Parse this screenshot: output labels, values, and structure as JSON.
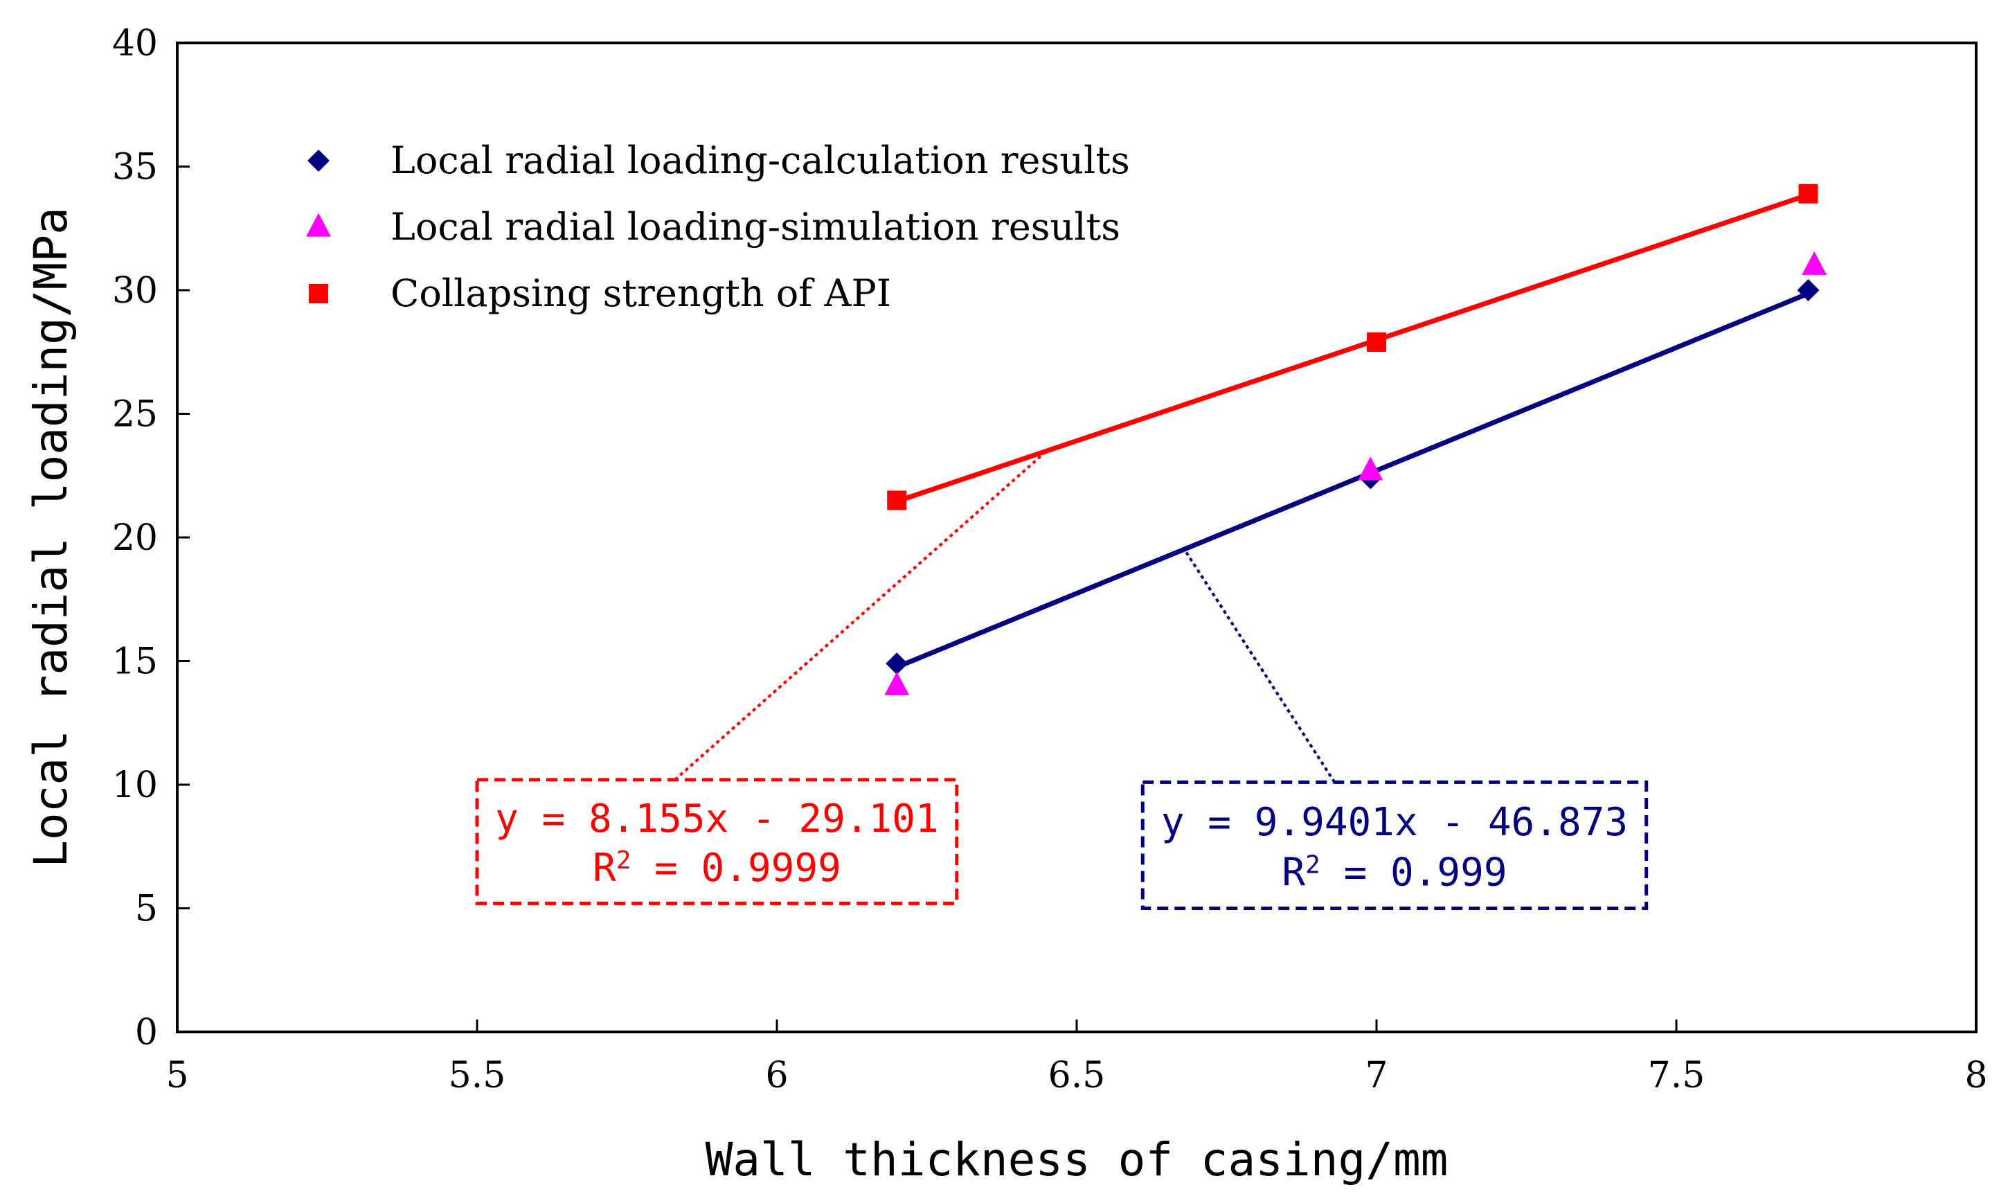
{
  "chart_data": {
    "type": "scatter",
    "title": "",
    "xlabel": "Wall thickness of casing/mm",
    "ylabel": "Local radial loading/MPa",
    "xlim": [
      5,
      8
    ],
    "ylim": [
      0,
      40
    ],
    "xticks": [
      5,
      5.5,
      6,
      6.5,
      7,
      7.5,
      8
    ],
    "xtick_labels": [
      "5",
      "5.5",
      "6",
      "6.5",
      "7",
      "7.5",
      "8"
    ],
    "yticks": [
      0,
      5,
      10,
      15,
      20,
      25,
      30,
      35,
      40
    ],
    "ytick_labels": [
      "0",
      "5",
      "10",
      "15",
      "20",
      "25",
      "30",
      "35",
      "40"
    ],
    "grid": false,
    "legend_position": "top-left",
    "series": [
      {
        "name": "Local radial loading-calculation results",
        "marker": "diamond",
        "color": "#000080",
        "x": [
          6.2,
          6.99,
          7.72
        ],
        "y": [
          14.9,
          22.4,
          30.0
        ],
        "fit": {
          "slope": 9.9401,
          "intercept": -46.873,
          "x_range": [
            6.2,
            7.72
          ]
        }
      },
      {
        "name": "Local radial loading-simulation results",
        "marker": "triangle",
        "color": "#ff00ff",
        "x": [
          6.2,
          6.99,
          7.73
        ],
        "y": [
          14.0,
          22.7,
          31.0
        ]
      },
      {
        "name": "Collapsing strength of API",
        "marker": "square",
        "color": "#ff0000",
        "x": [
          6.2,
          7.0,
          7.72
        ],
        "y": [
          21.5,
          27.9,
          33.9
        ],
        "fit": {
          "slope": 8.155,
          "intercept": -29.101,
          "x_range": [
            6.2,
            7.72
          ]
        }
      }
    ],
    "annotations": [
      {
        "series": "Collapsing strength of API",
        "color": "#ff0000",
        "equation": "y = 8.155x - 29.101",
        "r2_label": "R",
        "r2_sup": "2",
        "r2_value": " = 0.9999",
        "box": {
          "x": [
            5.5,
            6.3
          ],
          "y": [
            5.2,
            10.2
          ]
        },
        "leader_from": [
          5.83,
          10.2
        ],
        "leader_to": [
          6.45,
          23.5
        ]
      },
      {
        "series": "Local radial loading-calculation results",
        "color": "#000080",
        "equation": "y = 9.9401x - 46.873",
        "r2_label": "R",
        "r2_sup": "2",
        "r2_value": " = 0.999",
        "box": {
          "x": [
            6.61,
            7.45
          ],
          "y": [
            5.0,
            10.1
          ]
        },
        "leader_from": [
          6.93,
          10.1
        ],
        "leader_to": [
          6.68,
          19.5
        ]
      }
    ]
  }
}
